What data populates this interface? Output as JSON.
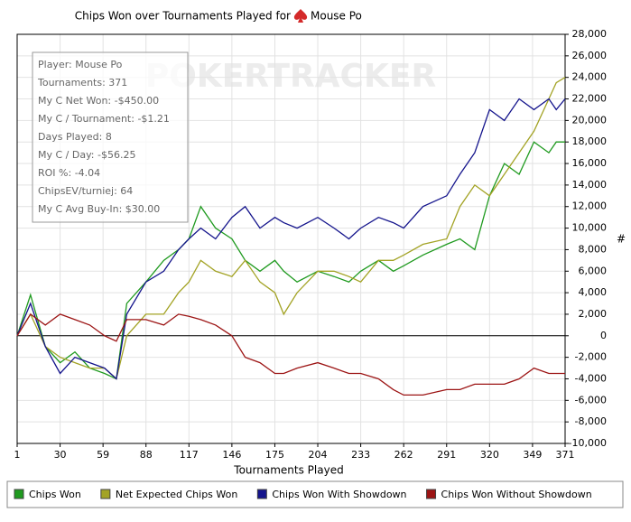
{
  "chart_data": {
    "type": "line",
    "title": "Chips Won over Tournaments Played for",
    "player": "Mouse Po",
    "watermark": "POKERTRACKER",
    "info_box": [
      "Player: Mouse Po",
      "Tournaments: 371",
      "My C Net Won: -$450.00",
      "My C / Tournament: -$1.21",
      "Days Played: 8",
      "My C / Day: -$56.25",
      "ROI %: -4.04",
      "ChipsEV/turniej: 64",
      "My C Avg Buy-In: $30.00"
    ],
    "x_label": "Tournaments Played",
    "y_label": "#",
    "x": [
      1,
      10,
      20,
      30,
      40,
      50,
      60,
      68,
      75,
      88,
      100,
      110,
      117,
      125,
      135,
      146,
      155,
      165,
      175,
      181,
      190,
      204,
      215,
      225,
      233,
      245,
      255,
      262,
      275,
      291,
      300,
      310,
      320,
      330,
      340,
      350,
      360,
      365,
      371
    ],
    "series": [
      {
        "name": "Chips Won",
        "color": "#1f9a1f",
        "values": [
          0,
          3800,
          -1000,
          -2500,
          -1500,
          -3000,
          -3500,
          -4000,
          3000,
          5000,
          7000,
          8000,
          9000,
          12000,
          10000,
          9000,
          7000,
          6000,
          7000,
          6000,
          5000,
          6000,
          5500,
          5000,
          6000,
          7000,
          6000,
          6500,
          7500,
          8500,
          9000,
          8000,
          13000,
          16000,
          15000,
          18000,
          17000,
          18000,
          18000
        ]
      },
      {
        "name": "Net Expected Chips Won",
        "color": "#a3a325",
        "values": [
          0,
          2000,
          -1000,
          -2000,
          -2500,
          -3000,
          -3000,
          -4000,
          0,
          2000,
          2000,
          4000,
          5000,
          7000,
          6000,
          5500,
          7000,
          5000,
          4000,
          2000,
          4000,
          6000,
          6000,
          5500,
          5000,
          7000,
          7000,
          7500,
          8500,
          9000,
          12000,
          14000,
          13000,
          15000,
          17000,
          19000,
          22000,
          23500,
          24000
        ]
      },
      {
        "name": "Chips Won With Showdown",
        "color": "#14148c",
        "values": [
          0,
          3000,
          -1000,
          -3500,
          -2000,
          -2500,
          -3000,
          -4000,
          2000,
          5000,
          6000,
          8000,
          9000,
          10000,
          9000,
          11000,
          12000,
          10000,
          11000,
          10500,
          10000,
          11000,
          10000,
          9000,
          10000,
          11000,
          10500,
          10000,
          12000,
          13000,
          15000,
          17000,
          21000,
          20000,
          22000,
          21000,
          22000,
          21000,
          22000
        ]
      },
      {
        "name": "Chips Won Without Showdown",
        "color": "#9c1414",
        "values": [
          0,
          2000,
          1000,
          2000,
          1500,
          1000,
          0,
          -500,
          1500,
          1500,
          1000,
          2000,
          1800,
          1500,
          1000,
          0,
          -2000,
          -2500,
          -3500,
          -3500,
          -3000,
          -2500,
          -3000,
          -3500,
          -3500,
          -4000,
          -5000,
          -5500,
          -5500,
          -5000,
          -5000,
          -4500,
          -4500,
          -4500,
          -4000,
          -3000,
          -3500,
          -3500,
          -3500
        ]
      }
    ],
    "xlim": [
      1,
      371
    ],
    "xticks": [
      1,
      30,
      59,
      88,
      117,
      146,
      175,
      204,
      233,
      262,
      291,
      320,
      349,
      371
    ],
    "ylim": [
      -10000,
      28000
    ],
    "yticks": [
      {
        "value": -10000,
        "label": "-10,000"
      },
      {
        "value": -8000,
        "label": "-8,000"
      },
      {
        "value": -6000,
        "label": "-6,000"
      },
      {
        "value": -4000,
        "label": "-4,000"
      },
      {
        "value": -2000,
        "label": "-2,000"
      },
      0,
      {
        "value": 2000,
        "label": "2,000"
      },
      {
        "value": 4000,
        "label": "4,000"
      },
      {
        "value": 6000,
        "label": "6,000"
      },
      {
        "value": 8000,
        "label": "8,000"
      },
      {
        "value": 10000,
        "label": "10,000"
      },
      {
        "value": 12000,
        "label": "12,000"
      },
      {
        "value": 14000,
        "label": "14,000"
      },
      {
        "value": 16000,
        "label": "16,000"
      },
      {
        "value": 18000,
        "label": "18,000"
      },
      {
        "value": 20000,
        "label": "20,000"
      },
      {
        "value": 22000,
        "label": "22,000"
      },
      {
        "value": 24000,
        "label": "24,000"
      },
      {
        "value": 26000,
        "label": "26,000"
      },
      {
        "value": 28000,
        "label": "28,000"
      }
    ],
    "grid": true,
    "legend": "bottom"
  }
}
